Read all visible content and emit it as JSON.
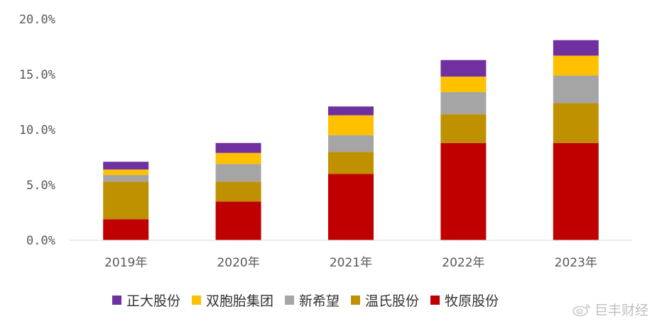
{
  "chart_data": {
    "type": "bar",
    "stacked": true,
    "categories": [
      "2019年",
      "2020年",
      "2021年",
      "2022年",
      "2023年"
    ],
    "series": [
      {
        "name": "牧原股份",
        "color": "#C00000",
        "values": [
          1.9,
          3.5,
          6.0,
          8.8,
          8.8
        ]
      },
      {
        "name": "温氏股份",
        "color": "#BF9000",
        "values": [
          3.4,
          1.8,
          2.0,
          2.6,
          3.6
        ]
      },
      {
        "name": "新希望",
        "color": "#A5A5A5",
        "values": [
          0.6,
          1.6,
          1.5,
          2.0,
          2.5
        ]
      },
      {
        "name": "双胞胎集团",
        "color": "#FFC000",
        "values": [
          0.5,
          1.0,
          1.8,
          1.4,
          1.8
        ]
      },
      {
        "name": "正大股份",
        "color": "#7030A0",
        "values": [
          0.7,
          0.9,
          0.8,
          1.5,
          1.4
        ]
      }
    ],
    "ylim": [
      0,
      20
    ],
    "yticks": [
      0,
      5,
      10,
      15,
      20
    ],
    "ytick_labels": [
      "0.0%",
      "5.0%",
      "10.0%",
      "15.0%",
      "20.0%"
    ],
    "legend_order": [
      "正大股份",
      "双胞胎集团",
      "新希望",
      "温氏股份",
      "牧原股份"
    ],
    "legend_position": "bottom",
    "grid": false
  },
  "watermark": {
    "text": "巨丰财经",
    "icon": "weibo-icon"
  }
}
